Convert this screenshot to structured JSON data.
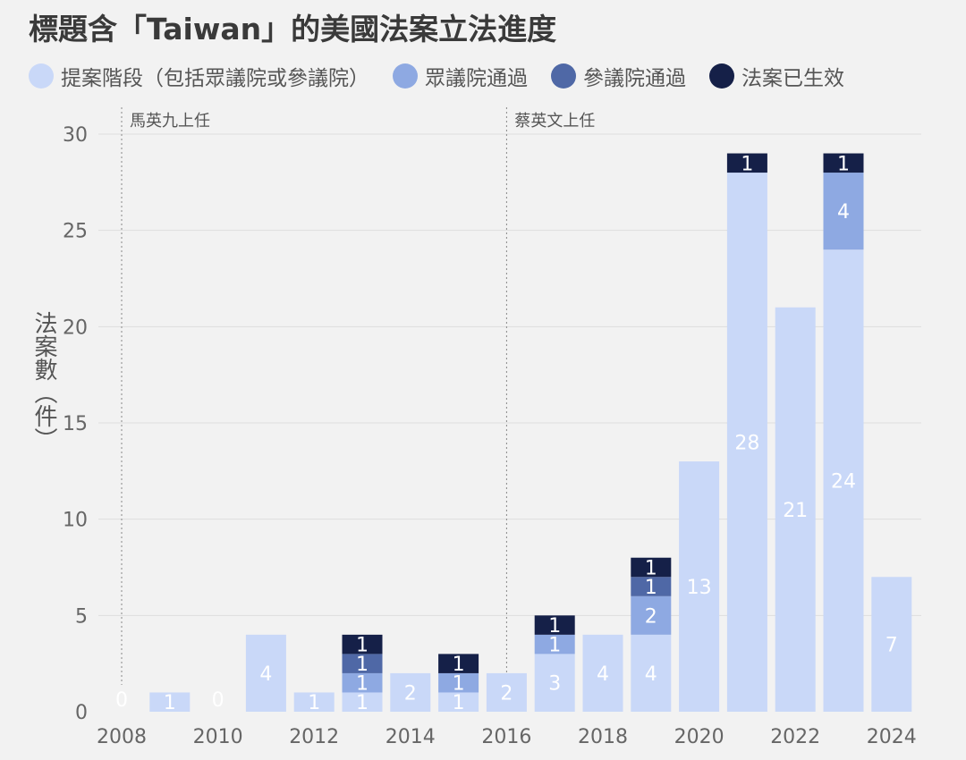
{
  "chart_data": {
    "type": "bar",
    "stacked": true,
    "title": "標題含「Taiwan」的美國法案立法進度",
    "ylabel": "法案數（件）",
    "ylim": [
      0,
      30
    ],
    "yticks": [
      0,
      5,
      10,
      15,
      20,
      25,
      30
    ],
    "grid": true,
    "legend_placement": "top",
    "x_ticks": [
      "2008",
      "2010",
      "2012",
      "2014",
      "2016",
      "2018",
      "2020",
      "2022",
      "2024"
    ],
    "categories": [
      "2008",
      "2009",
      "2010",
      "2011",
      "2012",
      "2013",
      "2014",
      "2015",
      "2016",
      "2017",
      "2018",
      "2019",
      "2020",
      "2021",
      "2022",
      "2023",
      "2024"
    ],
    "series": [
      {
        "name": "提案階段（包括眾議院或參議院）",
        "color": "#c9d8f8",
        "values": [
          0,
          1,
          0,
          4,
          1,
          1,
          2,
          1,
          2,
          3,
          4,
          4,
          13,
          28,
          21,
          24,
          7
        ]
      },
      {
        "name": "眾議院通過",
        "color": "#8ea9e2",
        "values": [
          0,
          0,
          0,
          0,
          0,
          1,
          0,
          1,
          0,
          1,
          0,
          2,
          0,
          0,
          0,
          4,
          0
        ]
      },
      {
        "name": "參議院通過",
        "color": "#4f68a6",
        "values": [
          0,
          0,
          0,
          0,
          0,
          1,
          0,
          0,
          0,
          0,
          0,
          1,
          0,
          0,
          0,
          0,
          0
        ]
      },
      {
        "name": "法案已生效",
        "color": "#152048",
        "values": [
          0,
          0,
          0,
          0,
          0,
          1,
          0,
          1,
          0,
          1,
          0,
          1,
          0,
          1,
          0,
          1,
          0
        ]
      }
    ],
    "annotations": [
      {
        "x": "2008",
        "text": "馬英九上任"
      },
      {
        "x": "2016",
        "text": "蔡英文上任"
      }
    ]
  }
}
